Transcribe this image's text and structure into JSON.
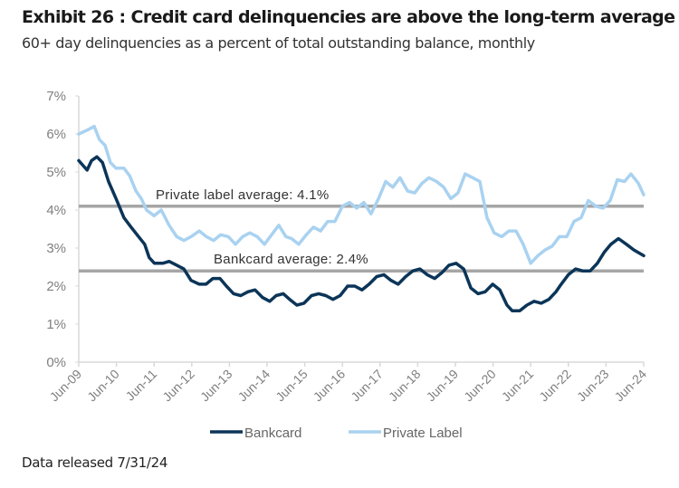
{
  "header": {
    "title": "Exhibit 26 : Credit card delinquencies are above the long-term average",
    "subtitle": "60+ day delinquencies as a percent of total outstanding balance, monthly"
  },
  "footer": {
    "note": "Data released 7/31/24"
  },
  "colors": {
    "bankcard": "#0b3558",
    "private_label": "#a9d2f0",
    "average_line": "#a6a6a6",
    "axis": "#d9d9d9"
  },
  "chart_data": {
    "type": "line",
    "title": "Exhibit 26 : Credit card delinquencies are above the long-term average",
    "subtitle": "60+ day delinquencies as a percent of total outstanding balance, monthly",
    "xlabel": "",
    "ylabel": "",
    "x_range": [
      2009.42,
      2024.42
    ],
    "ylim": [
      0,
      7
    ],
    "y_ticks": [
      "0%",
      "1%",
      "2%",
      "3%",
      "4%",
      "5%",
      "6%",
      "7%"
    ],
    "y_tick_values": [
      0,
      1,
      2,
      3,
      4,
      5,
      6,
      7
    ],
    "x_ticks": [
      "Jun-09",
      "Jun-10",
      "Jun-11",
      "Jun-12",
      "Jun-13",
      "Jun-14",
      "Jun-15",
      "Jun-16",
      "Jun-17",
      "Jun-18",
      "Jun-19",
      "Jun-20",
      "Jun-21",
      "Jun-22",
      "Jun-23",
      "Jun-24"
    ],
    "grid": false,
    "legend": "bottom",
    "reference_lines": [
      {
        "name": "Private label average",
        "value": 4.1,
        "label": "Private label average:  4.1%"
      },
      {
        "name": "Bankcard average",
        "value": 2.4,
        "label": "Bankcard average:  2.4%"
      }
    ],
    "series": [
      {
        "name": "Bankcard",
        "x_years": [
          0,
          0.22,
          0.34,
          0.48,
          0.63,
          0.79,
          0.99,
          1.2,
          1.39,
          1.59,
          1.75,
          1.87,
          2.01,
          2.23,
          2.4,
          2.6,
          2.79,
          2.98,
          3.2,
          3.38,
          3.56,
          3.75,
          3.92,
          4.11,
          4.3,
          4.49,
          4.68,
          4.88,
          5.07,
          5.24,
          5.43,
          5.6,
          5.79,
          5.98,
          6.18,
          6.37,
          6.56,
          6.75,
          6.94,
          7.14,
          7.33,
          7.52,
          7.71,
          7.91,
          8.1,
          8.29,
          8.48,
          8.68,
          8.87,
          9.06,
          9.25,
          9.45,
          9.64,
          9.83,
          10.02,
          10.22,
          10.41,
          10.6,
          10.79,
          10.99,
          11.18,
          11.37,
          11.51,
          11.71,
          11.9,
          12.09,
          12.28,
          12.48,
          12.67,
          12.81,
          13.0,
          13.19,
          13.38,
          13.58,
          13.77,
          13.96,
          14.13,
          14.33,
          14.54,
          14.74,
          15.0
        ],
        "values": [
          5.3,
          5.05,
          5.3,
          5.4,
          5.25,
          4.75,
          4.3,
          3.8,
          3.55,
          3.3,
          3.1,
          2.75,
          2.6,
          2.6,
          2.65,
          2.55,
          2.45,
          2.15,
          2.05,
          2.05,
          2.2,
          2.2,
          2.0,
          1.8,
          1.75,
          1.85,
          1.9,
          1.7,
          1.6,
          1.75,
          1.8,
          1.65,
          1.5,
          1.55,
          1.75,
          1.8,
          1.75,
          1.65,
          1.75,
          2.0,
          2.0,
          1.9,
          2.05,
          2.25,
          2.3,
          2.15,
          2.05,
          2.25,
          2.4,
          2.45,
          2.3,
          2.2,
          2.35,
          2.55,
          2.6,
          2.45,
          1.95,
          1.8,
          1.85,
          2.05,
          1.9,
          1.5,
          1.35,
          1.35,
          1.5,
          1.6,
          1.55,
          1.65,
          1.85,
          2.05,
          2.3,
          2.45,
          2.4,
          2.4,
          2.6,
          2.9,
          3.1,
          3.25,
          3.1,
          2.95,
          2.8
        ]
      },
      {
        "name": "Private Label",
        "x_years": [
          0,
          0.22,
          0.41,
          0.55,
          0.7,
          0.84,
          0.99,
          1.2,
          1.35,
          1.52,
          1.66,
          1.8,
          2.0,
          2.19,
          2.4,
          2.6,
          2.79,
          2.98,
          3.2,
          3.39,
          3.58,
          3.77,
          3.97,
          4.16,
          4.35,
          4.54,
          4.74,
          4.93,
          5.12,
          5.31,
          5.5,
          5.65,
          5.84,
          6.04,
          6.23,
          6.42,
          6.61,
          6.8,
          7.0,
          7.19,
          7.38,
          7.57,
          7.76,
          7.96,
          8.15,
          8.34,
          8.53,
          8.73,
          8.92,
          9.11,
          9.3,
          9.5,
          9.69,
          9.88,
          10.07,
          10.26,
          10.46,
          10.65,
          10.84,
          11.03,
          11.23,
          11.42,
          11.61,
          11.8,
          12.0,
          12.19,
          12.38,
          12.57,
          12.76,
          12.96,
          13.15,
          13.34,
          13.53,
          13.73,
          13.92,
          14.11,
          14.3,
          14.49,
          14.66,
          14.86,
          15.0
        ],
        "values": [
          6.0,
          6.1,
          6.2,
          5.85,
          5.7,
          5.25,
          5.1,
          5.1,
          4.9,
          4.5,
          4.3,
          4.0,
          3.85,
          4.0,
          3.6,
          3.3,
          3.2,
          3.3,
          3.45,
          3.3,
          3.2,
          3.35,
          3.3,
          3.1,
          3.3,
          3.4,
          3.3,
          3.1,
          3.35,
          3.6,
          3.3,
          3.25,
          3.1,
          3.35,
          3.55,
          3.45,
          3.7,
          3.7,
          4.1,
          4.2,
          4.05,
          4.2,
          3.9,
          4.3,
          4.75,
          4.6,
          4.85,
          4.5,
          4.45,
          4.7,
          4.85,
          4.75,
          4.6,
          4.3,
          4.45,
          4.95,
          4.85,
          4.75,
          3.8,
          3.4,
          3.3,
          3.45,
          3.45,
          3.1,
          2.6,
          2.8,
          2.95,
          3.05,
          3.3,
          3.3,
          3.7,
          3.8,
          4.25,
          4.1,
          4.05,
          4.25,
          4.8,
          4.75,
          4.95,
          4.7,
          4.4
        ]
      }
    ]
  }
}
